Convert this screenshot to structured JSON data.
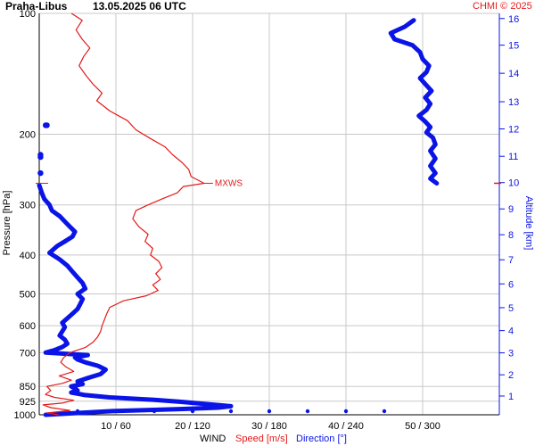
{
  "header": {
    "station": "Praha-Libus",
    "datetime": "13.05.2025 06 UTC",
    "copyright": "CHMI © 2025"
  },
  "axes": {
    "left_label": "Pressure [hPa]",
    "right_label": "Altitude [km]",
    "bottom_label_wind": "WIND",
    "bottom_label_speed": "Speed [m/s]",
    "bottom_label_direction": "Direction [°]",
    "mxws_label": "MXWS"
  },
  "colors": {
    "speed": "#e41a1a",
    "direction": "#0a14e6",
    "grid": "#c8c8c8",
    "frame": "#000000",
    "copyright": "#e41a1a"
  },
  "chart_data": {
    "type": "line",
    "title": "Praha-Libus 13.05.2025 06 UTC",
    "y_axis": {
      "label": "Pressure [hPa]",
      "scale": "log",
      "range": [
        1000,
        100
      ],
      "ticks": [
        100,
        200,
        300,
        400,
        500,
        600,
        700,
        850,
        925,
        1000
      ]
    },
    "y2_axis": {
      "label": "Altitude [km]",
      "ticks": [
        1,
        2,
        3,
        4,
        5,
        6,
        7,
        8,
        9,
        10,
        11,
        12,
        13,
        14,
        15,
        16
      ],
      "tick_pressure": [
        898,
        795,
        701,
        617,
        541,
        472,
        411,
        356,
        307,
        264,
        227,
        194,
        166,
        141,
        120,
        103
      ]
    },
    "x_axis": {
      "label": "WIND",
      "speed_range": [
        0,
        60
      ],
      "direction_range": [
        0,
        360
      ],
      "tick_labels": [
        "10 / 60",
        "20 / 120",
        "30 / 180",
        "40 / 240",
        "50 / 300"
      ],
      "tick_speed": [
        10,
        20,
        30,
        40,
        50
      ]
    },
    "mxws": {
      "label": "MXWS",
      "speed": 21.5,
      "pressure": 265
    },
    "series": [
      {
        "name": "Speed [m/s]",
        "unit": "m/s",
        "points": [
          [
            1000,
            2.5
          ],
          [
            990,
            1.0
          ],
          [
            975,
            4.0
          ],
          [
            960,
            1.5
          ],
          [
            945,
            0.5
          ],
          [
            935,
            3.0
          ],
          [
            920,
            4.5
          ],
          [
            905,
            2.0
          ],
          [
            890,
            0.8
          ],
          [
            870,
            1.5
          ],
          [
            850,
            1.0
          ],
          [
            835,
            3.0
          ],
          [
            820,
            4.2
          ],
          [
            800,
            2.6
          ],
          [
            780,
            4.5
          ],
          [
            760,
            3.5
          ],
          [
            740,
            2.8
          ],
          [
            720,
            3.2
          ],
          [
            700,
            4.0
          ],
          [
            680,
            6.0
          ],
          [
            660,
            7.0
          ],
          [
            640,
            7.6
          ],
          [
            620,
            8.0
          ],
          [
            600,
            8.2
          ],
          [
            580,
            8.5
          ],
          [
            560,
            8.8
          ],
          [
            540,
            9.2
          ],
          [
            520,
            11.0
          ],
          [
            505,
            14.0
          ],
          [
            490,
            15.5
          ],
          [
            475,
            14.8
          ],
          [
            460,
            15.8
          ],
          [
            445,
            15.2
          ],
          [
            430,
            16.0
          ],
          [
            415,
            15.6
          ],
          [
            400,
            14.5
          ],
          [
            385,
            14.8
          ],
          [
            370,
            13.8
          ],
          [
            355,
            14.2
          ],
          [
            340,
            13.0
          ],
          [
            325,
            12.2
          ],
          [
            310,
            12.6
          ],
          [
            300,
            14.2
          ],
          [
            290,
            16.0
          ],
          [
            280,
            18.0
          ],
          [
            270,
            18.8
          ],
          [
            265,
            21.5
          ],
          [
            255,
            19.8
          ],
          [
            245,
            19.5
          ],
          [
            235,
            18.6
          ],
          [
            225,
            17.4
          ],
          [
            215,
            16.4
          ],
          [
            205,
            14.5
          ],
          [
            195,
            12.6
          ],
          [
            185,
            11.5
          ],
          [
            175,
            9.2
          ],
          [
            165,
            7.5
          ],
          [
            158,
            8.2
          ],
          [
            150,
            7.0
          ],
          [
            142,
            6.0
          ],
          [
            135,
            5.2
          ],
          [
            128,
            5.8
          ],
          [
            122,
            6.6
          ],
          [
            116,
            5.6
          ],
          [
            110,
            4.8
          ],
          [
            104,
            5.6
          ],
          [
            100,
            4.2
          ]
        ]
      },
      {
        "name": "Direction [°]",
        "unit": "°",
        "points": [
          [
            1000,
            5
          ],
          [
            990,
            30
          ],
          [
            978,
            60
          ],
          [
            968,
            110
          ],
          [
            960,
            140
          ],
          [
            952,
            150
          ],
          [
            940,
            130
          ],
          [
            928,
            110
          ],
          [
            918,
            90
          ],
          [
            905,
            55
          ],
          [
            892,
            35
          ],
          [
            880,
            25
          ],
          [
            870,
            30
          ],
          [
            860,
            28
          ],
          [
            850,
            25
          ],
          [
            838,
            34
          ],
          [
            826,
            30
          ],
          [
            810,
            38
          ],
          [
            792,
            48
          ],
          [
            772,
            52
          ],
          [
            755,
            46
          ],
          [
            740,
            36
          ],
          [
            728,
            30
          ],
          [
            720,
            28
          ],
          [
            710,
            38
          ],
          [
            700,
            5
          ],
          [
            690,
            12
          ],
          [
            678,
            18
          ],
          [
            665,
            22
          ],
          [
            650,
            20
          ],
          [
            635,
            16
          ],
          [
            620,
            18
          ],
          [
            605,
            20
          ],
          [
            590,
            18
          ],
          [
            575,
            22
          ],
          [
            560,
            26
          ],
          [
            545,
            30
          ],
          [
            530,
            32
          ],
          [
            515,
            34
          ],
          [
            500,
            30
          ],
          [
            485,
            36
          ],
          [
            470,
            34
          ],
          [
            455,
            30
          ],
          [
            440,
            26
          ],
          [
            425,
            22
          ],
          [
            410,
            16
          ],
          [
            395,
            8
          ],
          [
            380,
            14
          ],
          [
            370,
            20
          ],
          [
            360,
            26
          ],
          [
            350,
            28
          ],
          [
            340,
            24
          ],
          [
            330,
            20
          ],
          [
            320,
            16
          ],
          [
            310,
            10
          ],
          [
            300,
            8
          ],
          [
            290,
            4
          ],
          [
            280,
            2
          ],
          [
            268,
            0
          ]
        ]
      },
      {
        "name": "Direction [°] (upper layer)",
        "unit": "°",
        "points": [
          [
            104,
            293
          ],
          [
            108,
            286
          ],
          [
            112,
            275
          ],
          [
            116,
            278
          ],
          [
            120,
            292
          ],
          [
            125,
            298
          ],
          [
            130,
            300
          ],
          [
            135,
            305
          ],
          [
            140,
            303
          ],
          [
            145,
            298
          ],
          [
            150,
            302
          ],
          [
            156,
            307
          ],
          [
            162,
            302
          ],
          [
            168,
            306
          ],
          [
            174,
            303
          ],
          [
            180,
            297
          ],
          [
            186,
            302
          ],
          [
            192,
            306
          ],
          [
            198,
            303
          ],
          [
            204,
            308
          ],
          [
            212,
            310
          ],
          [
            220,
            306
          ],
          [
            230,
            310
          ],
          [
            240,
            306
          ],
          [
            250,
            310
          ],
          [
            258,
            306
          ],
          [
            265,
            311
          ]
        ]
      }
    ],
    "scatter_dots": [
      {
        "pressure": 190,
        "direction": 6
      },
      {
        "pressure": 190,
        "direction": 5
      },
      {
        "pressure": 225,
        "direction": 1
      },
      {
        "pressure": 228,
        "direction": 1
      },
      {
        "pressure": 250,
        "direction": 1
      }
    ],
    "wind_barb_dots": [
      5,
      10,
      15,
      20,
      25,
      30,
      35,
      40,
      45
    ]
  }
}
